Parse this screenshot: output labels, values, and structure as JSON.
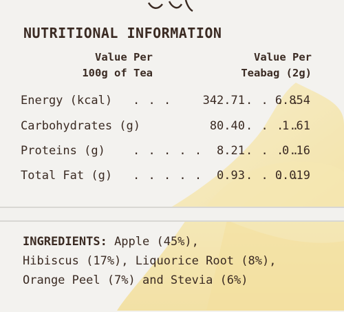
{
  "nutrition": {
    "heading": "NUTRITIONAL INFORMATION",
    "col1_line1": "Value Per",
    "col1_line2": "100g of Tea",
    "col2_line1": "Value Per",
    "col2_line2": "Teabag (2g)",
    "rows": [
      {
        "label": "Energy (kcal)",
        "dots1": ". . .",
        "per100g": "342.71",
        "dots2": ". . . .",
        "perTeabag": "6.854"
      },
      {
        "label": "Carbohydrates (g)",
        "dots1": "",
        "per100g": "80.40",
        "dots2": ". . . .",
        "perTeabag": "1.61"
      },
      {
        "label": "Proteins (g)",
        "dots1": ". . . . .",
        "per100g": "8.21",
        "dots2": ". . . .",
        "perTeabag": "0.16"
      },
      {
        "label": "Total Fat (g)",
        "dots1": ". . . . .",
        "per100g": "0.93",
        "dots2": ". . . .",
        "perTeabag": "0.019"
      }
    ]
  },
  "ingredients": {
    "title": "INGREDIENTS:",
    "line1": " Apple (45%),",
    "line2": "Hibiscus (17%), Liquorice Root (8%),",
    "line3": "Orange Peel (7%) and Stevia (6%)"
  },
  "colors": {
    "text": "#3a2a22",
    "background": "#f2f1ee",
    "accent_yellow": "#f4d34a"
  }
}
